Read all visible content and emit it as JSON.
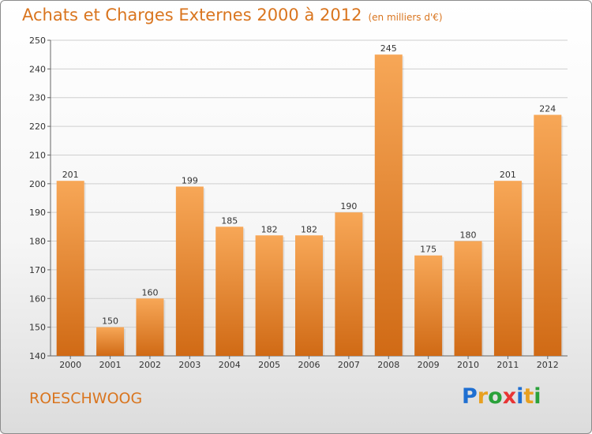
{
  "header": {
    "title": "Achats et Charges Externes 2000 à 2012",
    "unit": "(en milliers d'€)"
  },
  "footer": {
    "place": "ROESCHWOOG",
    "logo_text": "Proxiti",
    "logo_colors": [
      "#1f6fd1",
      "#e8a020",
      "#2aa13a",
      "#e83434",
      "#1f6fd1",
      "#e8a020",
      "#2aa13a"
    ]
  },
  "colors": {
    "accent": "#d9751f",
    "bar_top": "#f7a757",
    "bar_bottom": "#d06a15"
  },
  "chart_data": {
    "type": "bar",
    "categories": [
      "2000",
      "2001",
      "2002",
      "2003",
      "2004",
      "2005",
      "2006",
      "2007",
      "2008",
      "2009",
      "2010",
      "2011",
      "2012"
    ],
    "values": [
      201,
      150,
      160,
      199,
      185,
      182,
      182,
      190,
      245,
      175,
      180,
      201,
      224
    ],
    "yticks": [
      140,
      150,
      160,
      170,
      180,
      190,
      200,
      210,
      220,
      230,
      240,
      250
    ],
    "ylim": [
      140,
      250
    ],
    "grid": true,
    "data_labels": true
  }
}
